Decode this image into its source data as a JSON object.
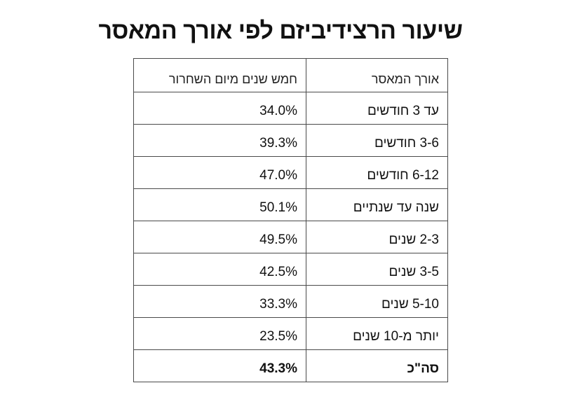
{
  "chart_data": {
    "type": "table",
    "title": "שיעור הרצידיביזם לפי אורך המאסר",
    "columns": [
      "אורך המאסר",
      "חמש שנים מיום השחרור"
    ],
    "rows": [
      {
        "label": "עד 3 חודשים",
        "value": "34.0%"
      },
      {
        "label": "3-6 חודשים",
        "value": "39.3%"
      },
      {
        "label": "6-12 חודשים",
        "value": "47.0%"
      },
      {
        "label": "שנה עד שנתיים",
        "value": "50.1%"
      },
      {
        "label": "2-3 שנים",
        "value": "49.5%"
      },
      {
        "label": "3-5 שנים",
        "value": "42.5%"
      },
      {
        "label": "5-10 שנים",
        "value": "33.3%"
      },
      {
        "label": "יותר מ-10 שנים",
        "value": "23.5%"
      }
    ],
    "total": {
      "label": "סה\"כ",
      "value": "43.3%"
    }
  },
  "colors": {
    "border": "#4a4a4a",
    "text": "#111111",
    "background": "#ffffff"
  }
}
